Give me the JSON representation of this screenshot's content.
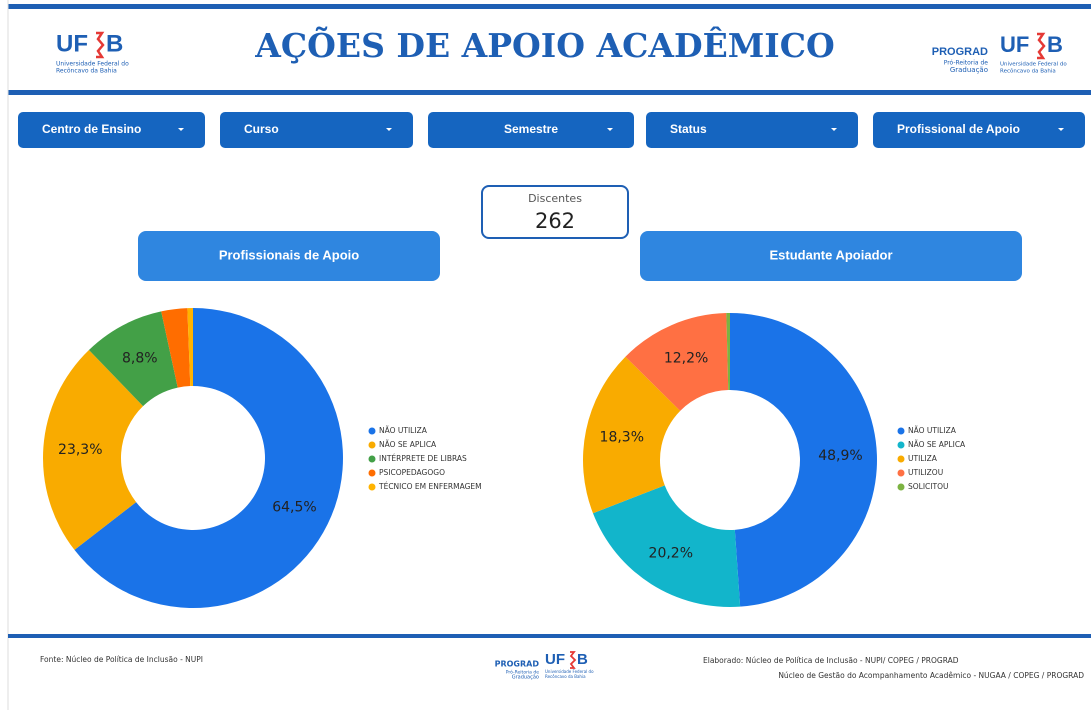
{
  "header": {
    "title": "AÇÕES DE APOIO ACADÊMICO",
    "logo_left": {
      "mark_a": "UF",
      "mark_b": "B",
      "line1": "Universidade Federal do",
      "line2": "Recôncavo da Bahia"
    },
    "logo_right": {
      "prograd": "PROGRAD",
      "line1": "Pró-Reitoria de",
      "line2": "Graduação",
      "mark_a": "UF",
      "mark_b": "B",
      "line3": "Universidade Federal do",
      "line4": "Recôncavo da Bahia"
    }
  },
  "filters": [
    "Centro de Ensino",
    "Curso",
    "Semestre",
    "Status",
    "Profissional de Apoio"
  ],
  "kpi": {
    "label": "Discentes",
    "value": "262"
  },
  "chart_data": [
    {
      "type": "donut",
      "title": "Profissionais de Apoio",
      "categories": [
        "NÃO UTILIZA",
        "NÃO SE APLICA",
        "INTÉRPRETE DE LIBRAS",
        "PSICOPEDAGOGO",
        "TÉCNICO EM ENFERMAGEM"
      ],
      "values": [
        64.5,
        23.3,
        8.8,
        2.8,
        0.6
      ],
      "value_labels": [
        "64,5%",
        "23,3%",
        "8,8%",
        null,
        null
      ],
      "colors": [
        "#1a73e8",
        "#f9ab00",
        "#43a047",
        "#ff6d00",
        "#ffb300"
      ],
      "legend": "right"
    },
    {
      "type": "donut",
      "title": "Estudante Apoiador",
      "categories": [
        "NÃO UTILIZA",
        "NÃO SE APLICA",
        "UTILIZA",
        "UTILIZOU",
        "SOLICITOU"
      ],
      "values": [
        48.9,
        20.2,
        18.3,
        12.2,
        0.4
      ],
      "value_labels": [
        "48,9%",
        "20,2%",
        "18,3%",
        "12,2%",
        null
      ],
      "colors": [
        "#1a73e8",
        "#12b5cb",
        "#f9ab00",
        "#ff7043",
        "#7cb342"
      ],
      "legend": "right"
    }
  ],
  "footer": {
    "source": "Fonte: Núcleo de Política de Inclusão - NUPI",
    "credit1": "Elaborado: Núcleo de Política de Inclusão - NUPI/ COPEG / PROGRAD",
    "credit2": "Núcleo de Gestão do Acompanhamento Acadêmico - NUGAA / COPEG / PROGRAD",
    "logo": {
      "prograd": "PROGRAD",
      "line1": "Pró-Reitoria de",
      "line2": "Graduação",
      "mark_a": "UF",
      "mark_b": "B",
      "line3": "Universidade Federal do",
      "line4": "Recôncavo da Bahia"
    }
  }
}
